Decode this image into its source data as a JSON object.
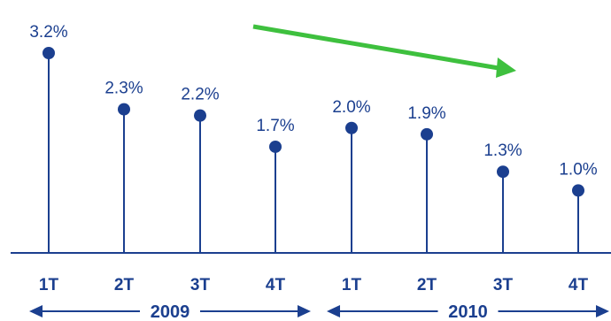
{
  "chart_data": {
    "type": "lollipop",
    "categories": [
      "1T",
      "2T",
      "3T",
      "4T",
      "1T",
      "2T",
      "3T",
      "4T"
    ],
    "values": [
      3.2,
      2.3,
      2.2,
      1.7,
      2.0,
      1.9,
      1.3,
      1.0
    ],
    "value_labels": [
      "3.2%",
      "2.3%",
      "2.2%",
      "1.7%",
      "2.0%",
      "1.9%",
      "1.3%",
      "1.0%"
    ],
    "groups": [
      {
        "label": "2009",
        "categories": [
          "1T",
          "2T",
          "3T",
          "4T"
        ]
      },
      {
        "label": "2010",
        "categories": [
          "1T",
          "2T",
          "3T",
          "4T"
        ]
      }
    ],
    "ylim": [
      0,
      3.2
    ],
    "grid": false,
    "annotation": "downward trend arrow",
    "colors": {
      "series": "#1b3f8f",
      "trend_arrow": "#3ec03e",
      "axis": "#1b3f8f"
    }
  }
}
